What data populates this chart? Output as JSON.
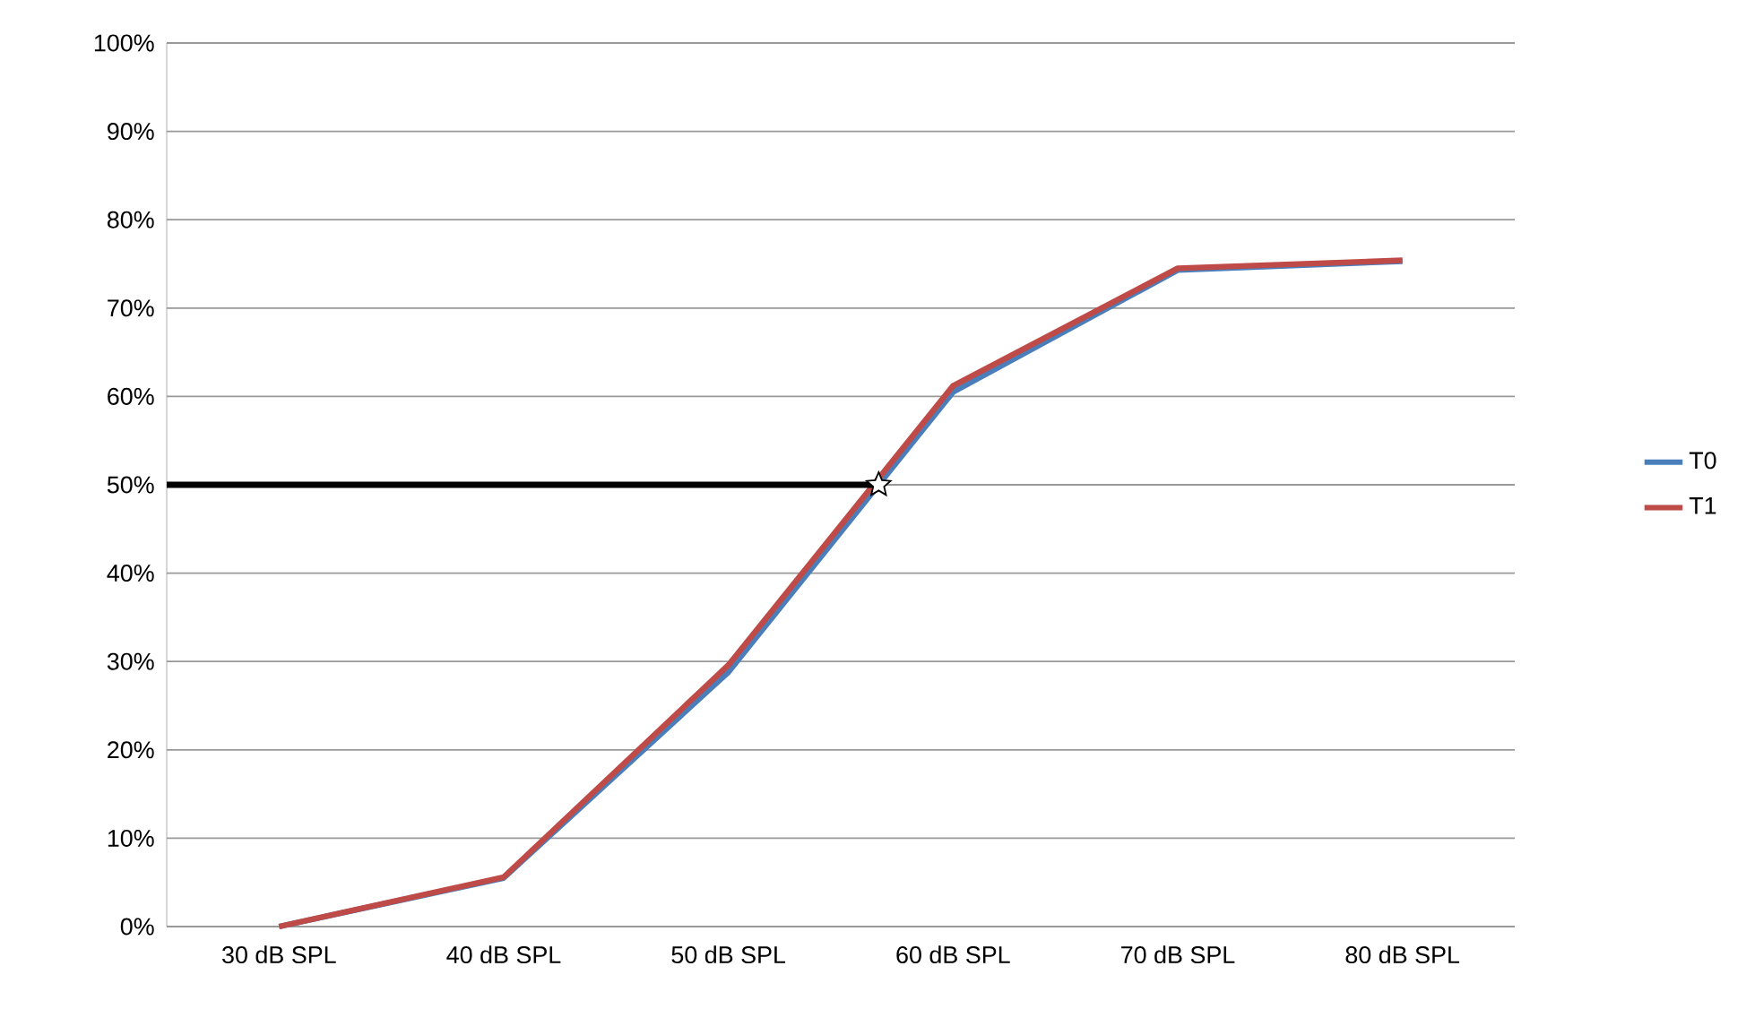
{
  "chart_data": {
    "type": "line",
    "categories": [
      "30 dB SPL",
      "40 dB SPL",
      "50 dB SPL",
      "60 dB SPL",
      "70 dB SPL",
      "80 dB SPL"
    ],
    "series": [
      {
        "name": "T0",
        "color": "#4a7ebb",
        "values": [
          0,
          5.5,
          28.8,
          60.5,
          74.3,
          75.3
        ]
      },
      {
        "name": "T1",
        "color": "#be4b48",
        "values": [
          0,
          5.6,
          29.6,
          61.2,
          74.5,
          75.4
        ]
      }
    ],
    "ylim": [
      0,
      100
    ],
    "yticks": [
      {
        "value": 0,
        "label": "0%"
      },
      {
        "value": 10,
        "label": "10%"
      },
      {
        "value": 20,
        "label": "20%"
      },
      {
        "value": 30,
        "label": "30%"
      },
      {
        "value": 40,
        "label": "40%"
      },
      {
        "value": 50,
        "label": "50%"
      },
      {
        "value": 60,
        "label": "60%"
      },
      {
        "value": 70,
        "label": "70%"
      },
      {
        "value": 80,
        "label": "80%"
      },
      {
        "value": 90,
        "label": "90%"
      },
      {
        "value": 100,
        "label": "100%"
      }
    ],
    "ref_lines": [
      {
        "axis": "y",
        "value": 50,
        "color": "#000000"
      }
    ],
    "grid": "y",
    "legend": "right",
    "marker": "none",
    "line_style": "solid"
  }
}
